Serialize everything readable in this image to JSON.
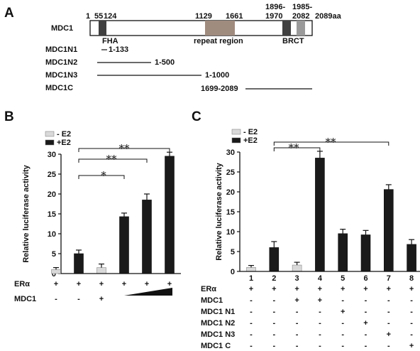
{
  "panels": [
    {
      "letter": "A",
      "domain_map": {
        "protein": "MDC1",
        "length_label": "2089aa",
        "position_labels": [
          "1",
          "55",
          "124",
          "1129",
          "1661",
          "1896-",
          "1970",
          "1985-",
          "2082"
        ],
        "domains": [
          "FHA",
          "repeat region",
          "BRCT"
        ],
        "constructs": [
          {
            "name": "MDC1N1",
            "range": "1-133"
          },
          {
            "name": "MDC1N2",
            "range": "1-500"
          },
          {
            "name": "MDC1N3",
            "range": "1-1000"
          },
          {
            "name": "MDC1C",
            "range": "1699-2089"
          }
        ]
      }
    }
  ],
  "chart_data": [
    {
      "panel": "B",
      "type": "bar",
      "ylabel": "Relative luciferase activity",
      "ylim": [
        0,
        30
      ],
      "yticks": [
        0,
        5,
        10,
        15,
        20,
        25,
        30
      ],
      "legend": {
        "placement": "top-left",
        "entries": [
          "- E2",
          "+E2"
        ]
      },
      "colors": {
        "-E2": "#d9d9d9",
        "+E2": "#1a1a1a"
      },
      "bars": [
        {
          "condition": "-E2",
          "value": 1.0,
          "error": 0.5
        },
        {
          "condition": "+E2",
          "value": 5.0,
          "error": 0.9
        },
        {
          "condition": "-E2",
          "value": 1.5,
          "error": 0.9
        },
        {
          "condition": "+E2",
          "value": 14.3,
          "error": 0.9
        },
        {
          "condition": "+E2",
          "value": 18.5,
          "error": 1.5
        },
        {
          "condition": "+E2",
          "value": 29.5,
          "error": 1.0
        }
      ],
      "row_labels": [
        "ERα",
        "MDC1"
      ],
      "rows": [
        [
          "+",
          "+",
          "+",
          "+",
          "+",
          "+"
        ],
        [
          "-",
          "-",
          "+",
          "",
          "",
          ""
        ]
      ],
      "dose_wedge": "increasing MDC1 under lanes 4-6",
      "significance": [
        {
          "from": 2,
          "to": 4,
          "label": "*"
        },
        {
          "from": 2,
          "to": 5,
          "label": "**"
        },
        {
          "from": 2,
          "to": 6,
          "label": "**"
        }
      ]
    },
    {
      "panel": "C",
      "type": "bar",
      "ylabel": "Relative luciferase activity",
      "ylim": [
        0,
        30
      ],
      "yticks": [
        0,
        5,
        10,
        15,
        20,
        25,
        30
      ],
      "legend": {
        "placement": "top-left",
        "entries": [
          "- E2",
          "+E2"
        ]
      },
      "colors": {
        "-E2": "#d9d9d9",
        "+E2": "#1a1a1a"
      },
      "lane_numbers": [
        "1",
        "2",
        "3",
        "4",
        "5",
        "6",
        "7",
        "8"
      ],
      "bars": [
        {
          "condition": "-E2",
          "value": 1.0,
          "error": 0.5
        },
        {
          "condition": "+E2",
          "value": 6.0,
          "error": 1.5
        },
        {
          "condition": "-E2",
          "value": 1.6,
          "error": 0.7
        },
        {
          "condition": "+E2",
          "value": 28.5,
          "error": 1.7
        },
        {
          "condition": "+E2",
          "value": 9.5,
          "error": 1.1
        },
        {
          "condition": "+E2",
          "value": 9.2,
          "error": 1.1
        },
        {
          "condition": "+E2",
          "value": 20.6,
          "error": 1.2
        },
        {
          "condition": "+E2",
          "value": 6.8,
          "error": 1.2
        }
      ],
      "row_labels": [
        "ERα",
        "MDC1",
        "MDC1 N1",
        "MDC1 N2",
        "MDC1 N3",
        "MDC1 C"
      ],
      "rows": [
        [
          "+",
          "+",
          "+",
          "+",
          "+",
          "+",
          "+",
          "+"
        ],
        [
          "-",
          "-",
          "+",
          "+",
          "-",
          "-",
          "-",
          "-"
        ],
        [
          "-",
          "-",
          "-",
          "-",
          "+",
          "-",
          "-",
          "-"
        ],
        [
          "-",
          "-",
          "-",
          "-",
          "-",
          "+",
          "-",
          "-"
        ],
        [
          "-",
          "-",
          "-",
          "-",
          "-",
          "-",
          "+",
          "-"
        ],
        [
          "-",
          "-",
          "-",
          "-",
          "-",
          "-",
          "-",
          "+"
        ]
      ],
      "significance": [
        {
          "from": 2,
          "to": 4,
          "label": "**"
        },
        {
          "from": 2,
          "to": 7,
          "label": "**"
        }
      ]
    }
  ]
}
